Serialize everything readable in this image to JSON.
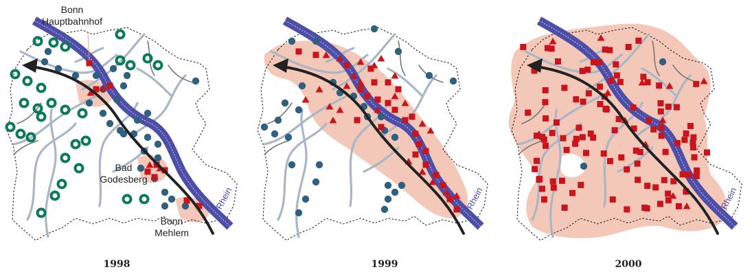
{
  "labels": {
    "bonn_hbf_line1": "Bonn",
    "bonn_hbf_line2": "Hauptbahnhof",
    "bad_godesberg_line1": "Bad",
    "bad_godesberg_line2": "Godesberg",
    "bonn_mehlem_line1": "Bonn",
    "bonn_mehlem_line2": "Mehlem",
    "river": "Rhein"
  },
  "panels": [
    {
      "year": "1998"
    },
    {
      "year": "1999"
    },
    {
      "year": "2000"
    }
  ],
  "colors": {
    "river": "#4c4ea8",
    "roads": "#a9b6c6",
    "minor_roads": "#777777",
    "path_arrow": "#222222",
    "spread_area": "#f2c2b0",
    "square_marker": "#c8141c",
    "triangle_marker": "#c8141c",
    "circle_marker": "#2f6080",
    "ring_marker": "#0a7a58"
  },
  "legend_icons": {
    "square": "red-square-marker",
    "triangle": "red-triangle-marker",
    "dot": "blue-dot-marker",
    "ring": "green-ring-marker"
  }
}
